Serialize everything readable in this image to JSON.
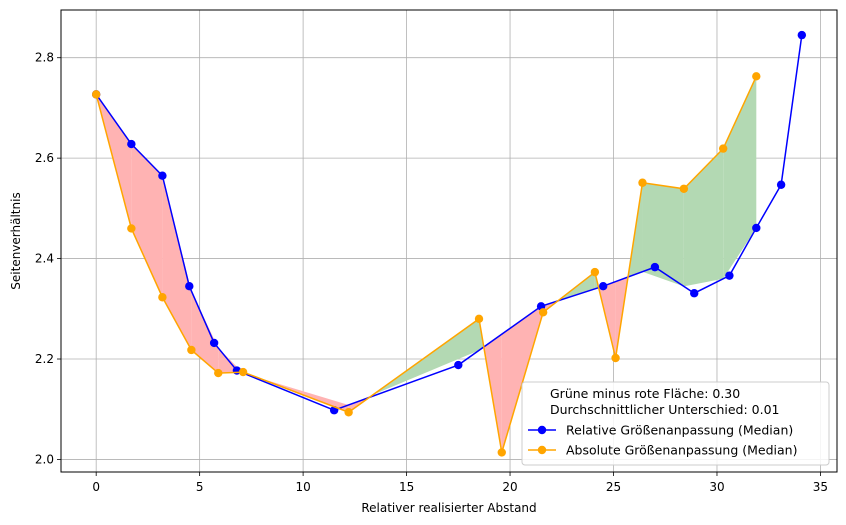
{
  "chart_data": {
    "type": "line",
    "xlabel": "Relativer realisierter Abstand",
    "ylabel": "Seitenverhältnis",
    "xlim": [
      -1.7,
      35.8
    ],
    "ylim": [
      1.975,
      2.895
    ],
    "xticks": [
      0,
      5,
      10,
      15,
      20,
      25,
      30,
      35
    ],
    "yticks": [
      2.0,
      2.2,
      2.4,
      2.6,
      2.8
    ],
    "xtick_labels": [
      "0",
      "5",
      "10",
      "15",
      "20",
      "25",
      "30",
      "35"
    ],
    "ytick_labels": [
      "2.0",
      "2.2",
      "2.4",
      "2.6",
      "2.8"
    ],
    "grid": true,
    "legend_position": "lower-right",
    "legend_header": [
      "Grüne minus rote Fläche: 0.30",
      "Durchschnittlicher Unterschied: 0.01"
    ],
    "fill_colors": {
      "positive": "#b3d9b3",
      "negative": "#ffb3b3"
    },
    "series": [
      {
        "name": "Relative Größenanpassung (Median)",
        "color": "#0000ff",
        "x": [
          0.0,
          1.7,
          3.2,
          4.5,
          5.7,
          6.8,
          11.5,
          17.5,
          21.5,
          24.5,
          27.0,
          28.9,
          30.6,
          31.9,
          33.1,
          34.1
        ],
        "y": [
          2.727,
          2.628,
          2.565,
          2.345,
          2.232,
          2.177,
          2.098,
          2.188,
          2.305,
          2.345,
          2.383,
          2.331,
          2.366,
          2.461,
          2.547,
          2.845
        ]
      },
      {
        "name": "Absolute Größenanpassung (Median)",
        "color": "#ffa500",
        "x": [
          0.0,
          1.7,
          3.2,
          4.6,
          5.9,
          7.1,
          12.2,
          18.5,
          19.6,
          21.6,
          24.1,
          25.1,
          26.4,
          28.4,
          30.3,
          31.9
        ],
        "y": [
          2.727,
          2.46,
          2.323,
          2.218,
          2.172,
          2.174,
          2.094,
          2.28,
          2.014,
          2.293,
          2.373,
          2.202,
          2.551,
          2.539,
          2.619,
          2.763
        ]
      }
    ]
  }
}
